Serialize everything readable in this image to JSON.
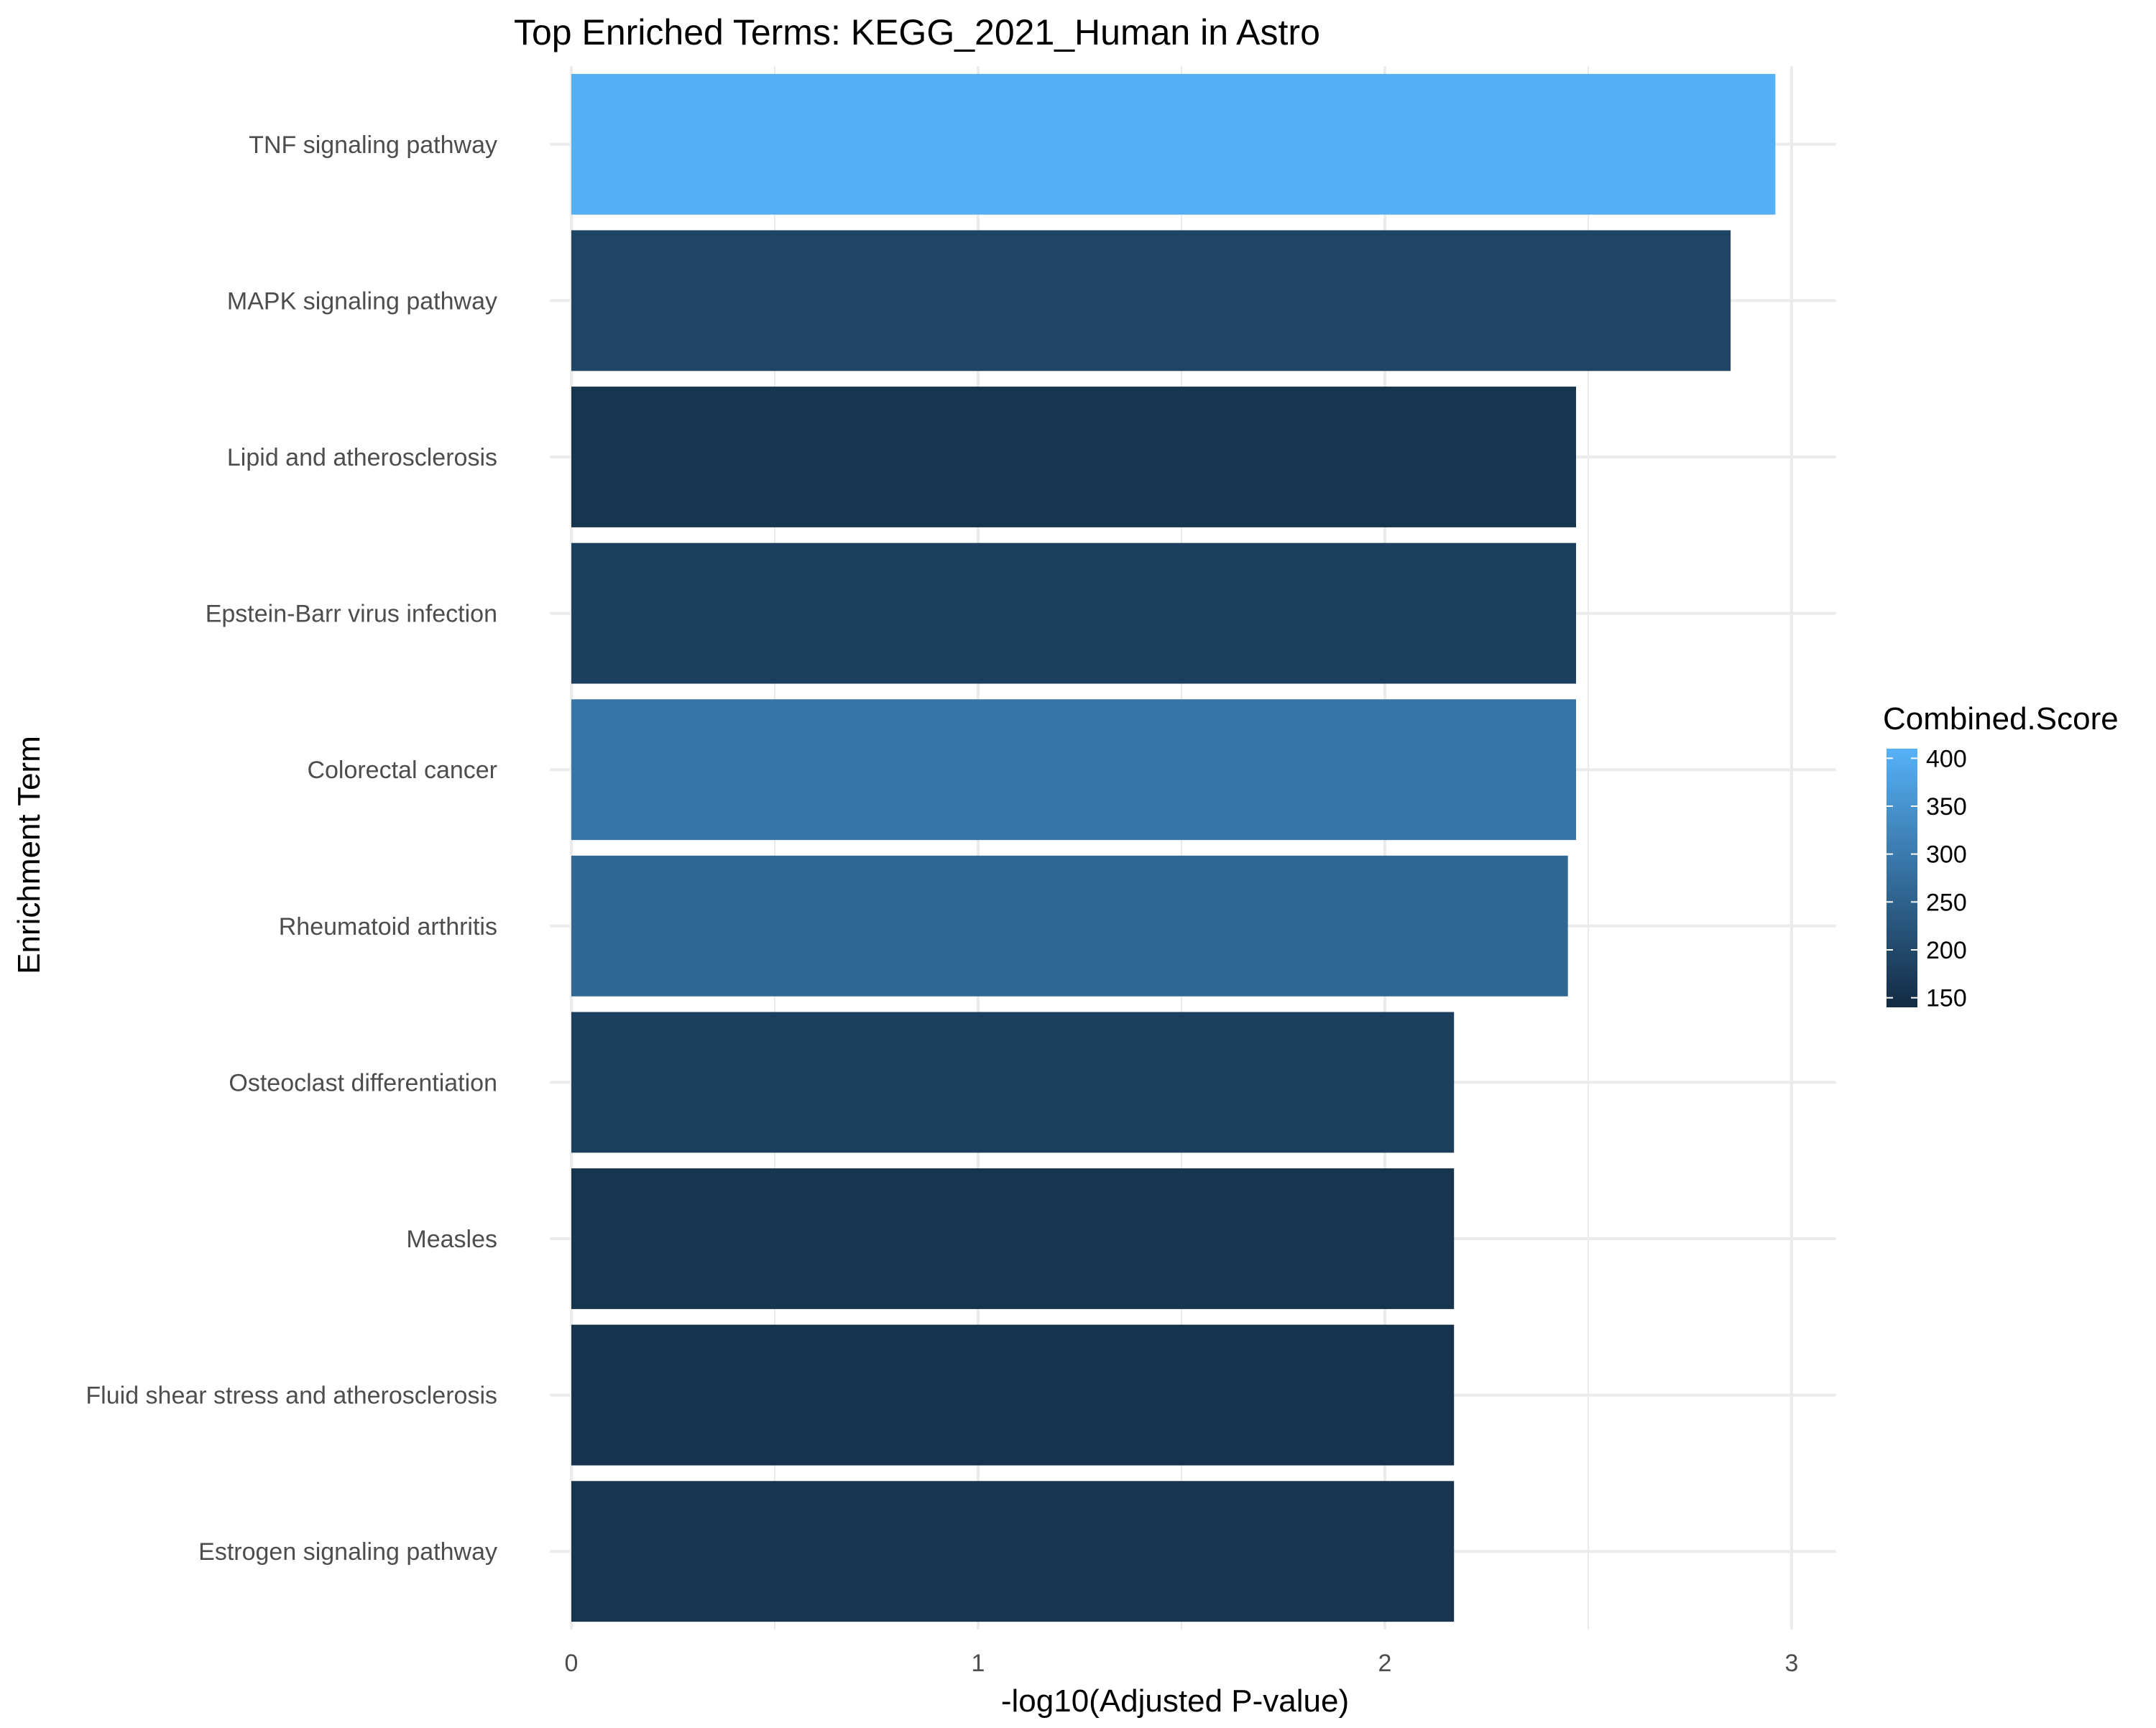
{
  "chart_data": {
    "type": "bar",
    "orientation": "horizontal",
    "title": "Top Enriched Terms: KEGG_2021_Human in Astro",
    "xlabel": "-log10(Adjusted P-value)",
    "ylabel": "Enrichment Term",
    "xlim": [
      0,
      3.1
    ],
    "xticks": [
      0,
      1,
      2,
      3
    ],
    "grid": true,
    "categories": [
      "TNF signaling pathway",
      "MAPK signaling pathway",
      "Lipid and atherosclerosis",
      "Epstein-Barr virus infection",
      "Colorectal cancer",
      "Rheumatoid arthritis",
      "Osteoclast differentiation",
      "Measles",
      "Fluid shear stress and atherosclerosis",
      "Estrogen signaling pathway"
    ],
    "values": [
      2.96,
      2.85,
      2.47,
      2.47,
      2.47,
      2.45,
      2.17,
      2.17,
      2.17,
      2.17
    ],
    "color_values": [
      405,
      190,
      160,
      180,
      290,
      260,
      180,
      160,
      155,
      160
    ],
    "color_scale": {
      "name": "Combined.Score",
      "min": 140,
      "max": 410,
      "low_color": "#132B43",
      "high_color": "#56B1F7",
      "ticks": [
        150,
        200,
        250,
        300,
        350,
        400
      ]
    },
    "legend_position": "right"
  }
}
